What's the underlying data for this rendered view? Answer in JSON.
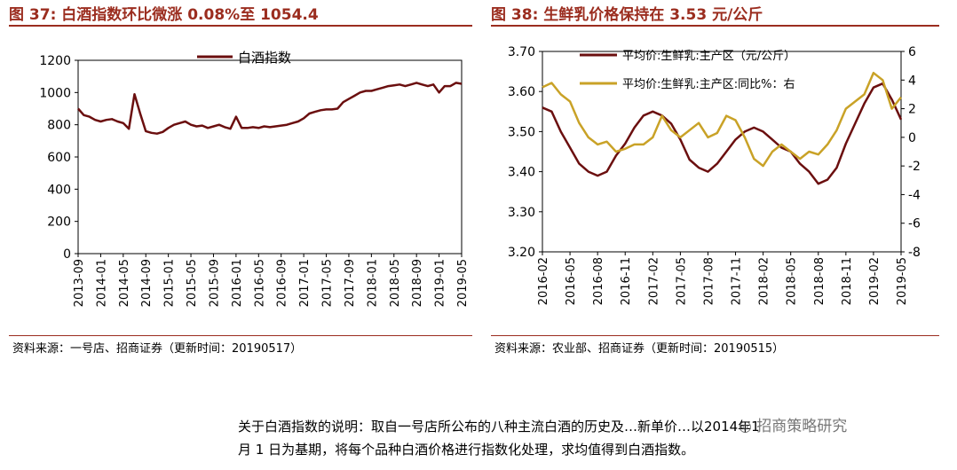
{
  "figure_left": {
    "title": "图 37: 白酒指数环比微涨 0.08%至 1054.4",
    "source": "资料来源：一号店、招商证券（更新时间：20190517）"
  },
  "figure_right": {
    "title": "图 38: 生鲜乳价格保持在 3.53 元/公斤",
    "source": "资料来源：农业部、招商证券（更新时间：20190515）"
  },
  "note": {
    "line1": "关于白酒指数的说明：取自一号店所公布的八种主流白酒的历史及…新单价…以2014年1",
    "line2": "月 1 日为基期，将每个品种白酒价格进行指数化处理，求均值得到白酒指数。"
  },
  "watermark": "招商策略研究",
  "chart_data": [
    {
      "type": "line",
      "title": "",
      "xlabel": "",
      "ylabel": "",
      "ylim": [
        0,
        1200
      ],
      "yticks": [
        "0",
        "200",
        "400",
        "600",
        "800",
        "1000",
        "1200"
      ],
      "xticks": [
        "2013-09",
        "2014-01",
        "2014-05",
        "2014-09",
        "2015-01",
        "2015-05",
        "2015-09",
        "2016-01",
        "2016-05",
        "2016-09",
        "2017-01",
        "2017-05",
        "2017-09",
        "2018-01",
        "2018-05",
        "2018-09",
        "2019-01",
        "2019-05"
      ],
      "legend_position": "top-center",
      "grid": false,
      "series": [
        {
          "name": "白酒指数",
          "color": "#6B0F0F",
          "x": [
            "2013-09",
            "2013-10",
            "2013-11",
            "2013-12",
            "2014-01",
            "2014-02",
            "2014-03",
            "2014-04",
            "2014-05",
            "2014-06",
            "2014-07",
            "2014-08",
            "2014-09",
            "2014-10",
            "2014-11",
            "2014-12",
            "2015-01",
            "2015-02",
            "2015-03",
            "2015-04",
            "2015-05",
            "2015-06",
            "2015-07",
            "2015-08",
            "2015-09",
            "2015-10",
            "2015-11",
            "2015-12",
            "2016-01",
            "2016-02",
            "2016-03",
            "2016-04",
            "2016-05",
            "2016-06",
            "2016-07",
            "2016-08",
            "2016-09",
            "2016-10",
            "2016-11",
            "2016-12",
            "2017-01",
            "2017-02",
            "2017-03",
            "2017-04",
            "2017-05",
            "2017-06",
            "2017-07",
            "2017-08",
            "2017-09",
            "2017-10",
            "2017-11",
            "2017-12",
            "2018-01",
            "2018-02",
            "2018-03",
            "2018-04",
            "2018-05",
            "2018-06",
            "2018-07",
            "2018-08",
            "2018-09",
            "2018-10",
            "2018-11",
            "2018-12",
            "2019-01",
            "2019-02",
            "2019-03",
            "2019-04",
            "2019-05"
          ],
          "values": [
            900,
            860,
            850,
            830,
            820,
            830,
            835,
            820,
            810,
            775,
            990,
            870,
            760,
            750,
            745,
            755,
            780,
            800,
            810,
            820,
            800,
            790,
            795,
            780,
            790,
            800,
            785,
            775,
            850,
            780,
            780,
            785,
            780,
            790,
            785,
            790,
            795,
            800,
            810,
            820,
            840,
            870,
            880,
            890,
            895,
            895,
            900,
            940,
            960,
            980,
            1000,
            1010,
            1010,
            1020,
            1030,
            1040,
            1045,
            1050,
            1040,
            1050,
            1060,
            1050,
            1040,
            1050,
            1000,
            1040,
            1040,
            1060,
            1054.4
          ]
        }
      ]
    },
    {
      "type": "line",
      "title": "",
      "xlabel": "",
      "ylabel": "",
      "ylim": [
        3.2,
        3.7
      ],
      "yticks": [
        "3.20",
        "3.30",
        "3.40",
        "3.50",
        "3.60",
        "3.70"
      ],
      "y2lim": [
        -8,
        6
      ],
      "y2ticks": [
        "-8",
        "-6",
        "-4",
        "-2",
        "0",
        "2",
        "4",
        "6"
      ],
      "xticks": [
        "2016-02",
        "2016-05",
        "2016-08",
        "2016-11",
        "2017-02",
        "2017-05",
        "2017-08",
        "2017-11",
        "2018-02",
        "2018-05",
        "2018-08",
        "2018-11",
        "2019-02",
        "2019-05"
      ],
      "legend_position": "top-left",
      "grid": false,
      "series": [
        {
          "name": "平均价:生鲜乳:主产区（元/公斤）",
          "axis": "left",
          "color": "#6B0F0F",
          "x": [
            "2016-02",
            "2016-03",
            "2016-04",
            "2016-05",
            "2016-06",
            "2016-07",
            "2016-08",
            "2016-09",
            "2016-10",
            "2016-11",
            "2016-12",
            "2017-01",
            "2017-02",
            "2017-03",
            "2017-04",
            "2017-05",
            "2017-06",
            "2017-07",
            "2017-08",
            "2017-09",
            "2017-10",
            "2017-11",
            "2017-12",
            "2018-01",
            "2018-02",
            "2018-03",
            "2018-04",
            "2018-05",
            "2018-06",
            "2018-07",
            "2018-08",
            "2018-09",
            "2018-10",
            "2018-11",
            "2018-12",
            "2019-01",
            "2019-02",
            "2019-03",
            "2019-04",
            "2019-05"
          ],
          "values": [
            3.56,
            3.55,
            3.5,
            3.46,
            3.42,
            3.4,
            3.39,
            3.4,
            3.44,
            3.47,
            3.51,
            3.54,
            3.55,
            3.54,
            3.52,
            3.48,
            3.43,
            3.41,
            3.4,
            3.42,
            3.45,
            3.48,
            3.5,
            3.51,
            3.5,
            3.48,
            3.46,
            3.45,
            3.42,
            3.4,
            3.37,
            3.38,
            3.41,
            3.47,
            3.52,
            3.57,
            3.61,
            3.62,
            3.58,
            3.53
          ]
        },
        {
          "name": "平均价:生鲜乳:主产区:同比%：右",
          "axis": "right",
          "color": "#C9A227",
          "x": [
            "2016-02",
            "2016-03",
            "2016-04",
            "2016-05",
            "2016-06",
            "2016-07",
            "2016-08",
            "2016-09",
            "2016-10",
            "2016-11",
            "2016-12",
            "2017-01",
            "2017-02",
            "2017-03",
            "2017-04",
            "2017-05",
            "2017-06",
            "2017-07",
            "2017-08",
            "2017-09",
            "2017-10",
            "2017-11",
            "2017-12",
            "2018-01",
            "2018-02",
            "2018-03",
            "2018-04",
            "2018-05",
            "2018-06",
            "2018-07",
            "2018-08",
            "2018-09",
            "2018-10",
            "2018-11",
            "2018-12",
            "2019-01",
            "2019-02",
            "2019-03",
            "2019-04",
            "2019-05"
          ],
          "values": [
            3.5,
            3.8,
            3.0,
            2.5,
            1.0,
            0.0,
            -0.5,
            -0.3,
            -1.0,
            -0.8,
            -0.5,
            -0.5,
            0.0,
            1.5,
            0.5,
            0.0,
            0.5,
            1.0,
            0.0,
            0.3,
            1.5,
            1.2,
            0.0,
            -1.5,
            -2.0,
            -1.0,
            -0.5,
            -1.0,
            -1.5,
            -1.0,
            -1.2,
            -0.5,
            0.5,
            2.0,
            2.5,
            3.0,
            4.5,
            4.0,
            2.0,
            2.8
          ]
        }
      ]
    }
  ]
}
